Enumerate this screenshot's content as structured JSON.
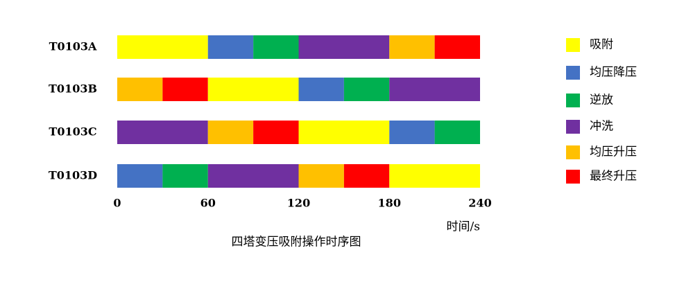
{
  "chart_data": {
    "type": "gantt",
    "title": "四塔变压吸附操作时序图",
    "xlabel": "时间/s",
    "xlim": [
      0,
      240
    ],
    "xticks": [
      0,
      60,
      120,
      180,
      240
    ],
    "series": [
      {
        "name": "吸附",
        "color": "#ffff00"
      },
      {
        "name": "均压降压",
        "color": "#4472c4"
      },
      {
        "name": "逆放",
        "color": "#00b050"
      },
      {
        "name": "冲洗",
        "color": "#7030a0"
      },
      {
        "name": "均压升压",
        "color": "#ffc000"
      },
      {
        "name": "最终升压",
        "color": "#ff0000"
      }
    ],
    "rows": [
      {
        "label": "T0103A",
        "segments": [
          {
            "step": "吸附",
            "value": 60
          },
          {
            "step": "均压降压",
            "value": 30
          },
          {
            "step": "逆放",
            "value": 30
          },
          {
            "step": "冲洗",
            "value": 60
          },
          {
            "step": "均压升压",
            "value": 30
          },
          {
            "step": "最终升压",
            "value": 30
          }
        ]
      },
      {
        "label": "T0103B",
        "segments": [
          {
            "step": "均压升压",
            "value": 30
          },
          {
            "step": "最终升压",
            "value": 30
          },
          {
            "step": "吸附",
            "value": 60
          },
          {
            "step": "均压降压",
            "value": 30
          },
          {
            "step": "逆放",
            "value": 30
          },
          {
            "step": "冲洗",
            "value": 60
          }
        ]
      },
      {
        "label": "T0103C",
        "segments": [
          {
            "step": "冲洗",
            "value": 60
          },
          {
            "step": "均压升压",
            "value": 30
          },
          {
            "step": "最终升压",
            "value": 30
          },
          {
            "step": "吸附",
            "value": 60
          },
          {
            "step": "均压降压",
            "value": 30
          },
          {
            "step": "逆放",
            "value": 30
          }
        ]
      },
      {
        "label": "T0103D",
        "segments": [
          {
            "step": "均压降压",
            "value": 30
          },
          {
            "step": "逆放",
            "value": 30
          },
          {
            "step": "冲洗",
            "value": 60
          },
          {
            "step": "均压升压",
            "value": 30
          },
          {
            "step": "最终升压",
            "value": 30
          },
          {
            "step": "吸附",
            "value": 60
          }
        ]
      }
    ]
  }
}
